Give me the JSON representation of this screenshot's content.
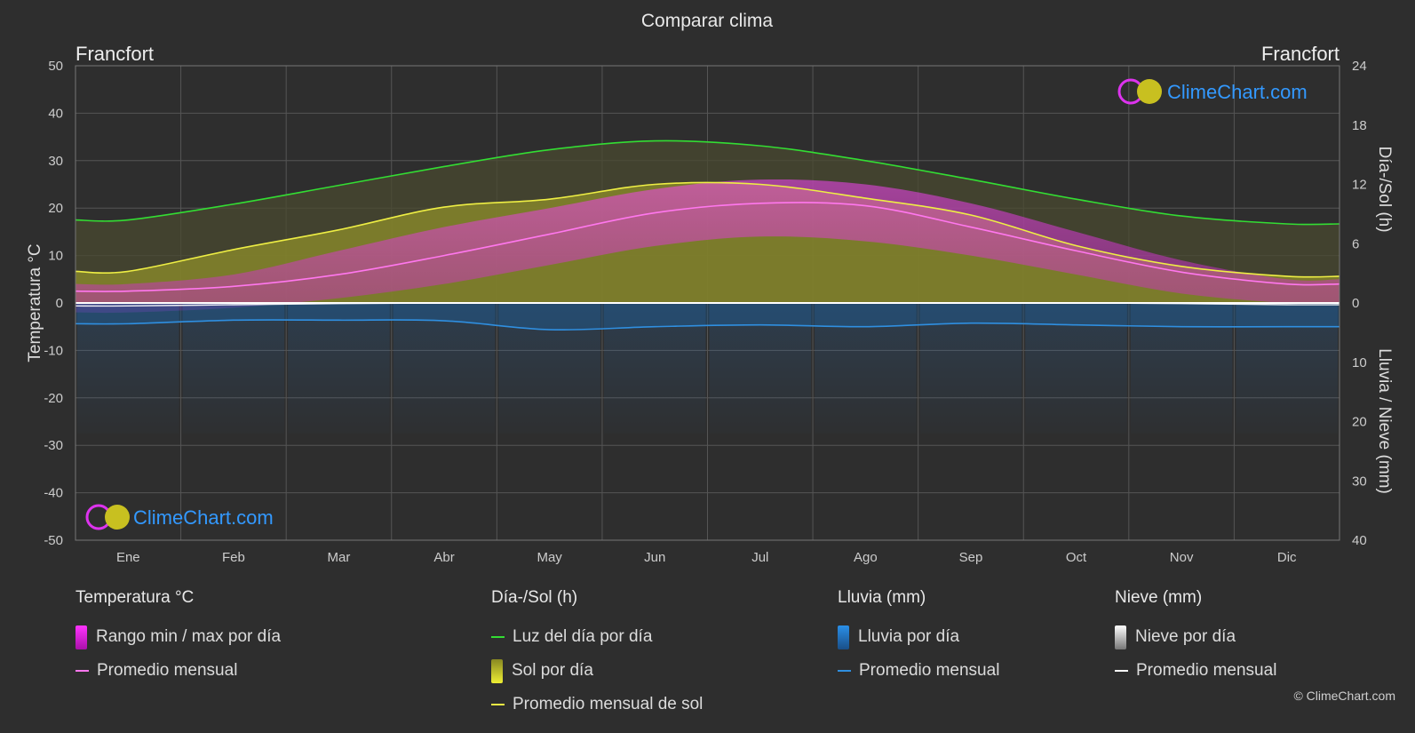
{
  "title": "Comparar clima",
  "location_left": "Francfort",
  "location_right": "Francfort",
  "brand": "ClimeChart.com",
  "copyright": "© ClimeChart.com",
  "colors": {
    "daylight": "#33dd33",
    "sun_avg": "#eeee44",
    "temp_avg": "#ff77ee",
    "rain_avg": "#2f8fe0",
    "snow_avg": "#ffffff",
    "temp_range": "#ee22ee",
    "sun_day": "#cccc22",
    "rain_day": "#2a7fd4",
    "snow_day": "#bbbbbb",
    "brand_text": "#3399ff"
  },
  "chart_data": {
    "type": "area",
    "months": [
      "Ene",
      "Feb",
      "Mar",
      "Abr",
      "May",
      "Jun",
      "Jul",
      "Ago",
      "Sep",
      "Oct",
      "Nov",
      "Dic"
    ],
    "y_left": {
      "label": "Temperatura °C",
      "range": [
        -50,
        50
      ],
      "ticks": [
        50,
        40,
        30,
        20,
        10,
        0,
        -10,
        -20,
        -30,
        -40,
        -50
      ]
    },
    "y_right_top": {
      "label": "Día-/Sol (h)",
      "range": [
        0,
        24
      ],
      "ticks": [
        24,
        18,
        12,
        6,
        0
      ]
    },
    "y_right_bottom": {
      "label": "Lluvia / Nieve (mm)",
      "range": [
        0,
        40
      ],
      "ticks": [
        10,
        20,
        30,
        40
      ]
    },
    "series": [
      {
        "name": "Luz del día por día",
        "unit": "h",
        "values": [
          8.4,
          10.0,
          11.9,
          13.8,
          15.5,
          16.4,
          15.9,
          14.4,
          12.5,
          10.5,
          8.8,
          8.0
        ]
      },
      {
        "name": "Promedio mensual de sol",
        "unit": "h",
        "values": [
          3.2,
          5.4,
          7.4,
          9.7,
          10.5,
          12.0,
          12.0,
          10.6,
          8.9,
          5.8,
          3.7,
          2.7
        ]
      },
      {
        "name": "Temperatura promedio mensual",
        "unit": "°C",
        "values": [
          2.5,
          3.5,
          6.0,
          10.0,
          14.5,
          19.0,
          21.0,
          20.5,
          16.0,
          11.0,
          6.5,
          4.0
        ]
      },
      {
        "name": "Lluvia promedio mensual",
        "unit": "mm",
        "values": [
          3.5,
          2.9,
          2.9,
          3.0,
          4.5,
          4.0,
          3.7,
          4.0,
          3.4,
          3.7,
          4.0,
          4.0
        ]
      },
      {
        "name": "Nieve promedio mensual",
        "unit": "mm",
        "values": [
          0.5,
          0.3,
          0.1,
          0,
          0,
          0,
          0,
          0,
          0,
          0,
          0.1,
          0.3
        ]
      },
      {
        "name": "Temperatura máxima diaria",
        "unit": "°C",
        "values": [
          4,
          6,
          11,
          16,
          20,
          24,
          26,
          25,
          21,
          15,
          9,
          5
        ]
      },
      {
        "name": "Temperatura mínima diaria",
        "unit": "°C",
        "values": [
          -2,
          -1,
          1,
          4,
          8,
          12,
          14,
          13,
          10,
          6,
          2,
          0
        ]
      }
    ]
  },
  "legend": {
    "temperature": {
      "title": "Temperatura °C",
      "items": [
        "Rango min / max por día",
        "Promedio mensual"
      ]
    },
    "daysun": {
      "title": "Día-/Sol (h)",
      "items": [
        "Luz del día por día",
        "Sol por día",
        "Promedio mensual de sol"
      ]
    },
    "rain": {
      "title": "Lluvia (mm)",
      "items": [
        "Lluvia por día",
        "Promedio mensual"
      ]
    },
    "snow": {
      "title": "Nieve (mm)",
      "items": [
        "Nieve por día",
        "Promedio mensual"
      ]
    }
  }
}
